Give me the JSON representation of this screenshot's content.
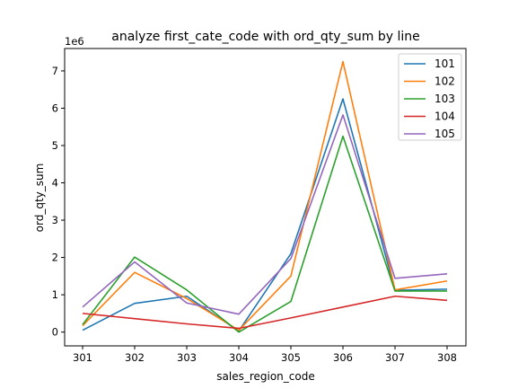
{
  "chart_data": {
    "type": "line",
    "title": "analyze first_cate_code with ord_qty_sum by line",
    "xlabel": "sales_region_code",
    "ylabel": "ord_qty_sum",
    "y_offset_text": "1e6",
    "categories": [
      "301",
      "302",
      "303",
      "304",
      "305",
      "306",
      "307",
      "308"
    ],
    "ylim": [
      -0.37,
      7.6
    ],
    "yticks": [
      0,
      1,
      2,
      3,
      4,
      5,
      6,
      7
    ],
    "grid": false,
    "legend_position": "top-right",
    "series": [
      {
        "name": "101",
        "color": "#1f77b4",
        "values": [
          0.05,
          0.77,
          0.96,
          0.03,
          2.1,
          6.25,
          1.12,
          1.15
        ]
      },
      {
        "name": "102",
        "color": "#ff7f0e",
        "values": [
          0.17,
          1.6,
          0.9,
          0.05,
          1.5,
          7.25,
          1.13,
          1.37
        ]
      },
      {
        "name": "103",
        "color": "#2ca02c",
        "values": [
          0.2,
          2.01,
          1.13,
          0.0,
          0.82,
          5.25,
          1.1,
          1.1
        ]
      },
      {
        "name": "104",
        "color": "#d62728",
        "values": [
          0.5,
          0.36,
          0.22,
          0.1,
          0.38,
          0.67,
          0.96,
          0.85
        ]
      },
      {
        "name": "105",
        "color": "#9467bd",
        "values": [
          0.67,
          1.88,
          0.78,
          0.48,
          1.97,
          5.82,
          1.44,
          1.56
        ]
      }
    ]
  }
}
